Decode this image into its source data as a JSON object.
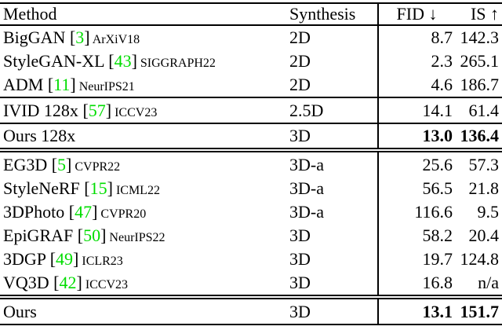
{
  "page": {
    "background": "#ffffff"
  },
  "citation_color": "#00dd00",
  "table": {
    "header": {
      "method": "Method",
      "synthesis": "Synthesis",
      "fid_label": "FID",
      "fid_arrow": "↓",
      "is_label": "IS",
      "is_arrow": "↑"
    },
    "rows": [
      {
        "method": "BigGAN",
        "cite": "3",
        "venue": "ArXiV18",
        "synthesis": "2D",
        "fid": "8.7",
        "is": "142.3",
        "bold": false,
        "rule": "none"
      },
      {
        "method": "StyleGAN-XL",
        "cite": "43",
        "venue": "SIGGRAPH22",
        "synthesis": "2D",
        "fid": "2.3",
        "is": "265.1",
        "bold": false,
        "rule": "none"
      },
      {
        "method": "ADM",
        "cite": "11",
        "venue": "NeurIPS21",
        "synthesis": "2D",
        "fid": "4.6",
        "is": "186.7",
        "bold": false,
        "rule": "none"
      },
      {
        "method": "IVID 128x",
        "cite": "57",
        "venue": "ICCV23",
        "synthesis": "2.5D",
        "fid": "14.1",
        "is": "61.4",
        "bold": false,
        "rule": "single"
      },
      {
        "method": "Ours 128x",
        "cite": "",
        "venue": "",
        "synthesis": "3D",
        "fid": "13.0",
        "is": "136.4",
        "bold": true,
        "rule": "single"
      },
      {
        "method": "EG3D",
        "cite": "5",
        "venue": "CVPR22",
        "synthesis": "3D-a",
        "fid": "25.6",
        "is": "57.3",
        "bold": false,
        "rule": "double"
      },
      {
        "method": "StyleNeRF",
        "cite": "15",
        "venue": "ICML22",
        "synthesis": "3D-a",
        "fid": "56.5",
        "is": "21.8",
        "bold": false,
        "rule": "none"
      },
      {
        "method": "3DPhoto",
        "cite": "47",
        "venue": "CVPR20",
        "synthesis": "3D-a",
        "fid": "116.6",
        "is": "9.5",
        "bold": false,
        "rule": "none"
      },
      {
        "method": "EpiGRAF",
        "cite": "50",
        "venue": "NeurIPS22",
        "synthesis": "3D",
        "fid": "58.2",
        "is": "20.4",
        "bold": false,
        "rule": "none"
      },
      {
        "method": "3DGP",
        "cite": "49",
        "venue": "ICLR23",
        "synthesis": "3D",
        "fid": "19.7",
        "is": "124.8",
        "bold": false,
        "rule": "none"
      },
      {
        "method": "VQ3D",
        "cite": "42",
        "venue": "ICCV23",
        "synthesis": "3D",
        "fid": "16.8",
        "is": "n/a",
        "bold": false,
        "rule": "none"
      },
      {
        "method": "Ours",
        "cite": "",
        "venue": "",
        "synthesis": "3D",
        "fid": "13.1",
        "is": "151.7",
        "bold": true,
        "rule": "double"
      }
    ]
  }
}
